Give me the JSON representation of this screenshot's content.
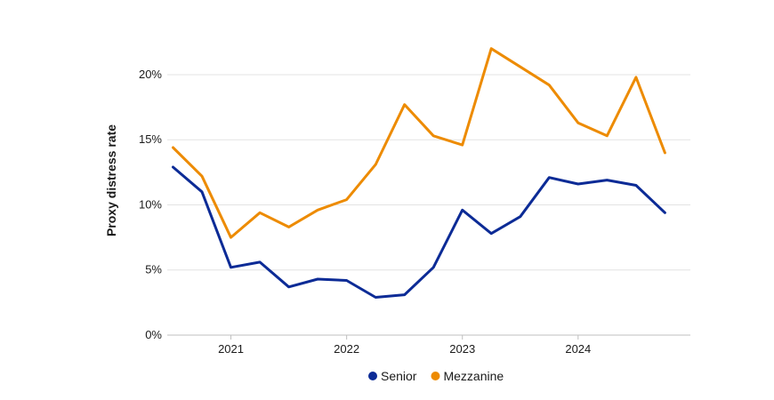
{
  "chart_data": {
    "type": "line",
    "title": "",
    "xlabel": "",
    "ylabel": "Proxy distress rate",
    "ylim": [
      0,
      23
    ],
    "yticks": [
      0,
      5,
      10,
      15,
      20
    ],
    "ytick_labels": [
      "0%",
      "5%",
      "10%",
      "15%",
      "20%"
    ],
    "xlim": [
      2020.45,
      2024.97
    ],
    "xticks": [
      2021,
      2022,
      2023,
      2024
    ],
    "xtick_labels": [
      "2021",
      "2022",
      "2023",
      "2024"
    ],
    "x": [
      2020.5,
      2020.75,
      2021.0,
      2021.25,
      2021.5,
      2021.75,
      2022.0,
      2022.25,
      2022.5,
      2022.75,
      2023.0,
      2023.25,
      2023.5,
      2023.75,
      2024.0,
      2024.25,
      2024.5,
      2024.75
    ],
    "grid": true,
    "legend_position": "bottom",
    "series": [
      {
        "name": "Senior",
        "color": "#0c2b96",
        "values": [
          12.9,
          11.0,
          5.2,
          5.6,
          3.7,
          4.3,
          4.2,
          2.9,
          3.1,
          5.2,
          9.6,
          7.8,
          9.1,
          12.1,
          11.6,
          11.9,
          11.5,
          9.4
        ]
      },
      {
        "name": "Mezzanine",
        "color": "#ed8b00",
        "values": [
          14.4,
          12.2,
          7.5,
          9.4,
          8.3,
          9.6,
          10.4,
          13.1,
          17.7,
          15.3,
          14.6,
          22.0,
          20.6,
          19.2,
          16.3,
          15.3,
          19.8,
          14.0
        ]
      }
    ]
  }
}
